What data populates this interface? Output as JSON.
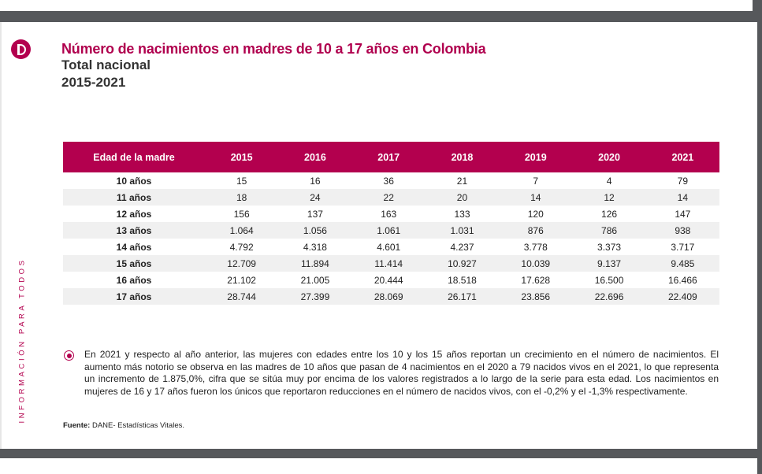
{
  "sidebar": {
    "vertical_text": "INFORMACIÓN PARA TODOS",
    "logo": "DANE"
  },
  "header": {
    "title": "Número de nacimientos en madres de 10 a 17 años en Colombia",
    "subtitle": "Total nacional",
    "period": "2015-2021"
  },
  "table": {
    "columns": [
      "Edad de la madre",
      "2015",
      "2016",
      "2017",
      "2018",
      "2019",
      "2020",
      "2021"
    ],
    "rows": [
      [
        "10 años",
        "15",
        "16",
        "36",
        "21",
        "7",
        "4",
        "79"
      ],
      [
        "11 años",
        "18",
        "24",
        "22",
        "20",
        "14",
        "12",
        "14"
      ],
      [
        "12 años",
        "156",
        "137",
        "163",
        "133",
        "120",
        "126",
        "147"
      ],
      [
        "13 años",
        "1.064",
        "1.056",
        "1.061",
        "1.031",
        "876",
        "786",
        "938"
      ],
      [
        "14 años",
        "4.792",
        "4.318",
        "4.601",
        "4.237",
        "3.778",
        "3.373",
        "3.717"
      ],
      [
        "15 años",
        "12.709",
        "11.894",
        "11.414",
        "10.927",
        "10.039",
        "9.137",
        "9.485"
      ],
      [
        "16 años",
        "21.102",
        "21.005",
        "20.444",
        "18.518",
        "17.628",
        "16.500",
        "16.466"
      ],
      [
        "17 años",
        "28.744",
        "27.399",
        "28.069",
        "26.171",
        "23.856",
        "22.696",
        "22.409"
      ]
    ]
  },
  "note": "En 2021 y respecto al año anterior, las mujeres con edades entre los 10 y los 15 años reportan un crecimiento en el número de nacimientos. El aumento más notorio se observa en las madres de 10 años que pasan de 4 nacimientos en el 2020 a 79 nacidos vivos en el 2021, lo que representa un incremento de 1.875,0%,  cifra que se sitúa muy por encima de los valores registrados a lo largo de la serie para esta edad. Los nacimientos en mujeres de 16 y 17 años fueron los únicos que reportaron reducciones en el número de nacidos vivos, con el -0,2% y el -1,3% respectivamente.",
  "source": {
    "label": "Fuente:",
    "text": " DANE- Estadísticas Vitales."
  },
  "colors": {
    "brand": "#b3004e",
    "viewer_bg": "#56585b"
  }
}
